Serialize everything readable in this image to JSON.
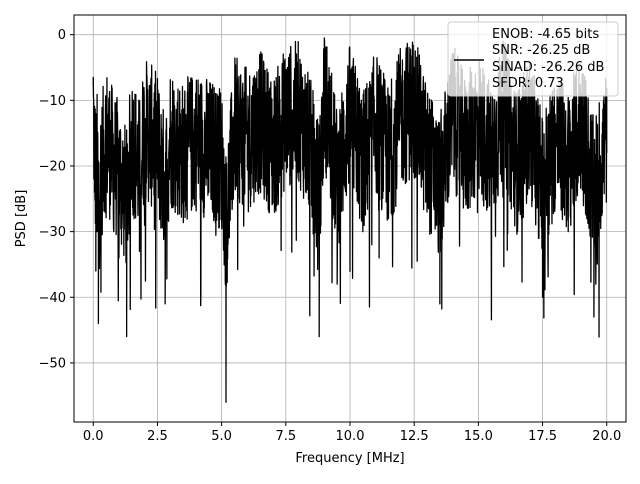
{
  "chart_data": {
    "type": "line",
    "xlabel": "Frequency [MHz]",
    "ylabel": "PSD [dB]",
    "xlim": [
      -0.75,
      20.75
    ],
    "ylim": [
      -59,
      3
    ],
    "xticks": [
      0.0,
      2.5,
      5.0,
      7.5,
      10.0,
      12.5,
      15.0,
      17.5,
      20.0
    ],
    "xtick_labels": [
      "0.0",
      "2.5",
      "5.0",
      "7.5",
      "10.0",
      "12.5",
      "15.0",
      "17.5",
      "20.0"
    ],
    "yticks": [
      0,
      -10,
      -20,
      -30,
      -40,
      -50
    ],
    "ytick_labels": [
      "0",
      "−10",
      "−20",
      "−30",
      "−40",
      "−50"
    ],
    "grid": true,
    "legend": {
      "placement": "top-right",
      "entries": [
        "ENOB: -4.65 bits",
        "SNR: -26.25 dB",
        "SINAD: -26.26 dB",
        "SFDR: 0.73"
      ]
    },
    "series": [
      {
        "color": "#000000",
        "x": [
          0.0,
          0.02,
          0.05,
          0.1,
          0.15,
          0.2,
          0.3,
          0.5,
          0.8,
          1.0,
          1.3,
          1.5,
          1.8,
          2.0,
          2.5,
          2.8,
          3.0,
          3.5,
          4.0,
          4.5,
          5.0,
          5.17,
          5.5,
          6.0,
          6.5,
          7.0,
          7.5,
          8.0,
          8.5,
          8.8,
          9.0,
          9.5,
          10.0,
          10.5,
          11.0,
          11.5,
          12.0,
          12.5,
          13.0,
          13.5,
          14.0,
          14.5,
          15.0,
          15.5,
          16.0,
          16.5,
          17.0,
          17.5,
          18.0,
          18.5,
          19.0,
          19.5,
          20.0
        ],
        "y": [
          -6.5,
          -15,
          -24,
          -36,
          -30,
          -44,
          -35,
          -18,
          -30,
          -34,
          -46,
          -20,
          -33,
          -15,
          -22,
          -41,
          -18,
          -26,
          -20,
          -24,
          -28,
          -56,
          -15,
          -20,
          -12,
          -24,
          -10,
          -8,
          -26,
          -46,
          -0.5,
          -38,
          -9,
          -30,
          -12,
          -28,
          -10,
          -5,
          -27,
          -41,
          -9,
          -24,
          -12,
          -27,
          -7,
          -30,
          -14,
          -40,
          -20,
          -30,
          -12,
          -43,
          -18
        ]
      }
    ]
  }
}
